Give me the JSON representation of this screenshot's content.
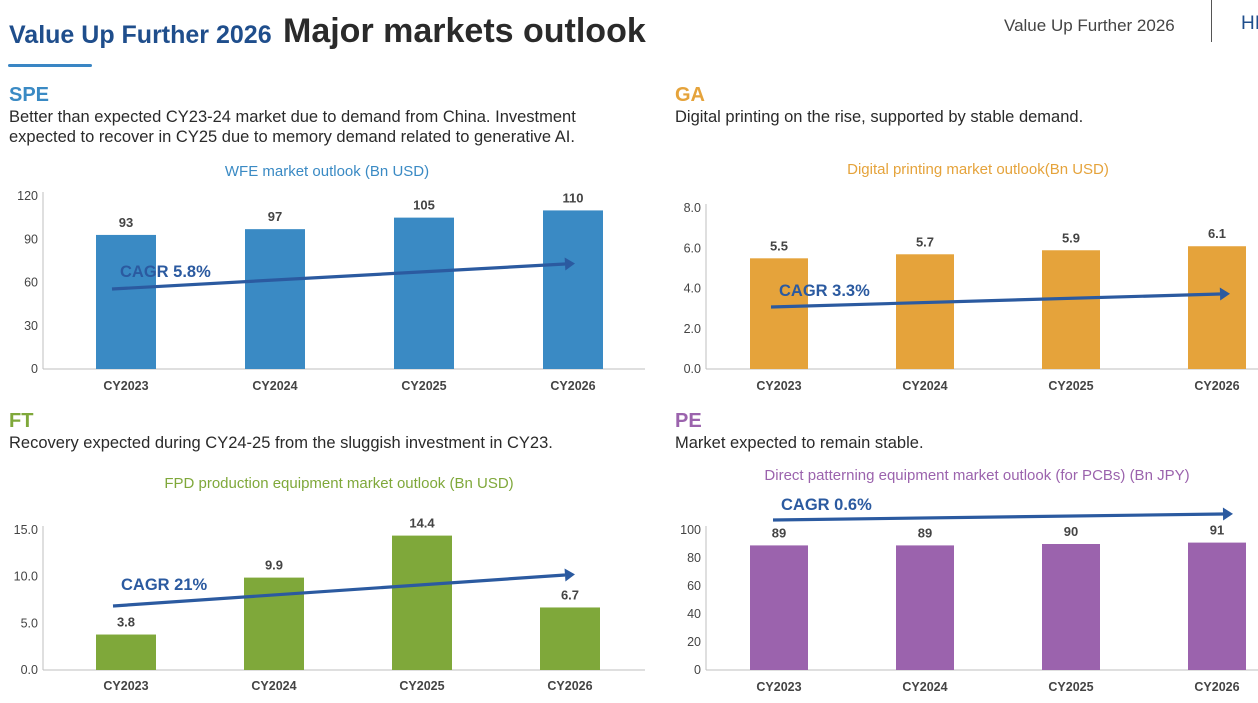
{
  "header": {
    "brand_title": "Value Up Further 2026",
    "page_title": "Major markets outlook",
    "right_label": "Value Up Further 2026",
    "right_cut": "HI"
  },
  "colors": {
    "brand": "#1f4e8c",
    "arrow": "#2b5aa0"
  },
  "panels": [
    {
      "segment": "SPE",
      "color": "#3a8ac4",
      "description": "Better than expected CY23-24 market due to demand from China. Investment expected to recover in CY25 due to memory demand related to generative AI."
    },
    {
      "segment": "GA",
      "color": "#e5a33b",
      "description": "Digital printing on the rise, supported by stable demand."
    },
    {
      "segment": "FT",
      "color": "#7fa83a",
      "description": "Recovery expected during CY24-25 from the sluggish investment in CY23."
    },
    {
      "segment": "PE",
      "color": "#9b63ad",
      "description": "Market expected to remain stable."
    }
  ],
  "chart_data": [
    {
      "type": "bar",
      "title": "WFE market outlook (Bn USD)",
      "categories": [
        "CY2023",
        "CY2024",
        "CY2025",
        "CY2026"
      ],
      "values": [
        93,
        97,
        105,
        110
      ],
      "value_labels": [
        "93",
        "97",
        "105",
        "110"
      ],
      "yticks": [
        "0",
        "30",
        "60",
        "90",
        "120"
      ],
      "ylim": [
        0,
        120
      ],
      "annotation": "CAGR 5.8%",
      "bar_color": "#3a8ac4",
      "title_color": "#3a8ac4",
      "grid": false
    },
    {
      "type": "bar",
      "title": "Digital printing market outlook(Bn USD)",
      "categories": [
        "CY2023",
        "CY2024",
        "CY2025",
        "CY2026"
      ],
      "values": [
        5.5,
        5.7,
        5.9,
        6.1
      ],
      "value_labels": [
        "5.5",
        "5.7",
        "5.9",
        "6.1"
      ],
      "yticks": [
        "0.0",
        "2.0",
        "4.0",
        "6.0",
        "8.0"
      ],
      "ylim": [
        0,
        8
      ],
      "annotation": "CAGR 3.3%",
      "bar_color": "#e5a33b",
      "title_color": "#e5a33b",
      "grid": false
    },
    {
      "type": "bar",
      "title": "FPD production equipment market outlook (Bn USD)",
      "categories": [
        "CY2023",
        "CY2024",
        "CY2025",
        "CY2026"
      ],
      "values": [
        3.8,
        9.9,
        14.4,
        6.7
      ],
      "value_labels": [
        "3.8",
        "9.9",
        "14.4",
        "6.7"
      ],
      "yticks": [
        "0.0",
        "5.0",
        "10.0",
        "15.0"
      ],
      "ylim": [
        0,
        15
      ],
      "annotation": "CAGR 21%",
      "bar_color": "#7fa83a",
      "title_color": "#7fa83a",
      "grid": false
    },
    {
      "type": "bar",
      "title": "Direct patterning equipment market outlook (for PCBs) (Bn JPY)",
      "categories": [
        "CY2023",
        "CY2024",
        "CY2025",
        "CY2026"
      ],
      "values": [
        89,
        89,
        90,
        91
      ],
      "value_labels": [
        "89",
        "89",
        "90",
        "91"
      ],
      "yticks": [
        "0",
        "20",
        "40",
        "60",
        "80",
        "100"
      ],
      "ylim": [
        0,
        100
      ],
      "annotation": "CAGR 0.6%",
      "bar_color": "#9b63ad",
      "title_color": "#9b63ad",
      "grid": false
    }
  ]
}
